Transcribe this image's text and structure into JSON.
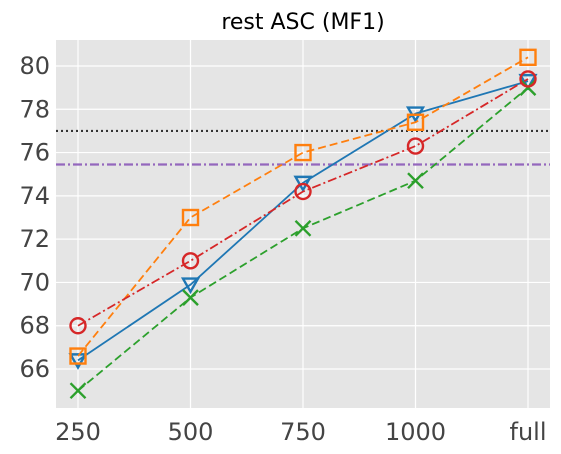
{
  "chart_data": {
    "type": "line",
    "title": "rest ASC (MF1)",
    "xlabel": "",
    "ylabel": "",
    "categories": [
      "250",
      "500",
      "750",
      "1000",
      "full"
    ],
    "ylim": [
      64.2,
      81.2
    ],
    "yticks": [
      66,
      68,
      70,
      72,
      74,
      76,
      78,
      80
    ],
    "grid": true,
    "background": "#e5e5e5",
    "series": [
      {
        "values": [
          66.4,
          69.9,
          74.6,
          77.8,
          79.3
        ],
        "color": "#1f77b4",
        "dash": "solid",
        "marker": "triangle-down"
      },
      {
        "values": [
          66.6,
          73.0,
          76.0,
          77.4,
          80.4
        ],
        "color": "#ff7f0e",
        "dash": "dashed",
        "marker": "square"
      },
      {
        "values": [
          65.0,
          69.3,
          72.5,
          74.7,
          79.0
        ],
        "color": "#2ca02c",
        "dash": "dashed",
        "marker": "x"
      },
      {
        "values": [
          68.0,
          71.0,
          74.2,
          76.3,
          79.4
        ],
        "color": "#d62728",
        "dash": "dashdot",
        "marker": "circle"
      }
    ],
    "reference_lines": [
      {
        "y": 77.0,
        "color": "#333333",
        "style": "dotted"
      },
      {
        "y": 75.45,
        "color": "#9467bd",
        "style": "dashdot"
      }
    ]
  }
}
